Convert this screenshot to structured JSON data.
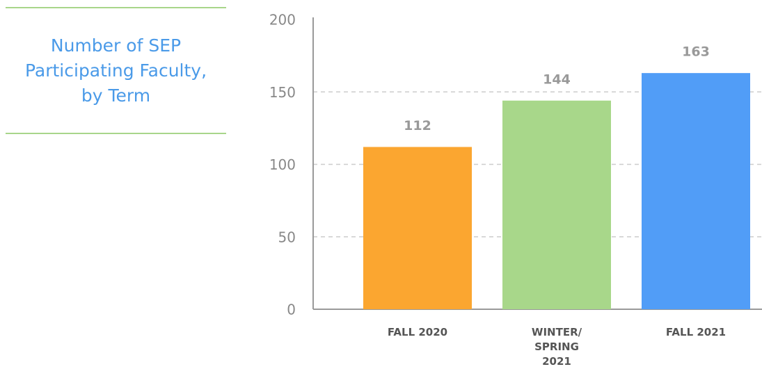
{
  "chart_data": {
    "type": "bar",
    "title": "Number of SEP Participating Faculty, by Term",
    "categories": [
      "FALL 2020",
      "WINTER/ SPRING 2021",
      "FALL 2021"
    ],
    "values": [
      112,
      144,
      163
    ],
    "colors": [
      "#fba630",
      "#a8d78a",
      "#519df7"
    ],
    "ylim": [
      0,
      200
    ],
    "yticks": [
      0,
      50,
      100,
      150,
      200
    ],
    "grid": true
  }
}
